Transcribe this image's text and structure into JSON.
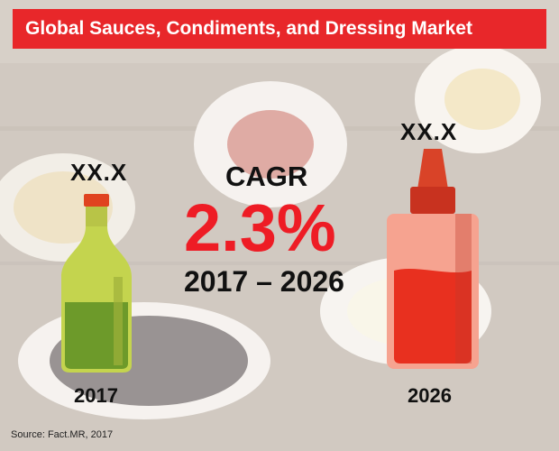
{
  "title": "Global Sauces, Condiments, and Dressing Market",
  "cagr": {
    "label": "CAGR",
    "value_text": "2.3%",
    "period": "2017 – 2026"
  },
  "chart_data": {
    "type": "bar",
    "title": "Global Sauces, Condiments, and Dressing Market",
    "categories": [
      "2017",
      "2026"
    ],
    "value_labels": [
      "XX.X",
      "XX.X"
    ],
    "cagr_percent": 2.3,
    "period": [
      "2017",
      "2026"
    ]
  },
  "source": "Source: Fact.MR, 2017",
  "colors": {
    "title_bar": "#e8272a",
    "cagr_value": "#ee1c25",
    "bottle_2017_glass": "#c4d44e",
    "bottle_2017_liquid": "#6d9a2a",
    "bottle_2017_cap": "#e0431f",
    "bottle_2026_body": "#f6a390",
    "bottle_2026_sauce": "#e8301f",
    "bottle_2026_cap": "#d94328"
  },
  "icons": {
    "bottle_2017": "oil-bottle-icon",
    "bottle_2026": "sauce-bottle-icon"
  }
}
